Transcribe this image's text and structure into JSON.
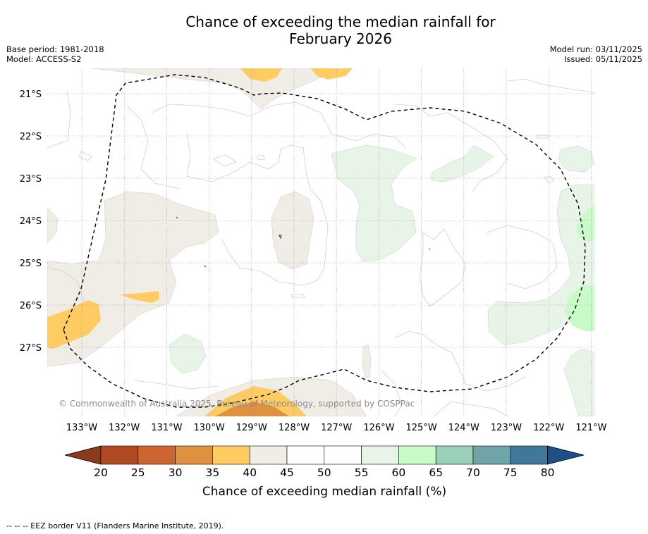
{
  "header": {
    "title_line1": "Chance of exceeding the median rainfall for",
    "title_line2": "February 2026",
    "base_period": "Base period: 1981-2018",
    "model": "Model: ACCESS-S2",
    "model_run": "Model run: 03/11/2025",
    "issued": "Issued: 05/11/2025"
  },
  "map": {
    "latitudes": [
      "21°S",
      "22°S",
      "23°S",
      "24°S",
      "25°S",
      "26°S",
      "27°S"
    ],
    "longitudes": [
      "133°W",
      "132°W",
      "131°W",
      "130°W",
      "129°W",
      "128°W",
      "127°W",
      "126°W",
      "125°W",
      "124°W",
      "123°W",
      "122°W",
      "121°W"
    ],
    "copyright": "© Commonwealth of Australia 2025, Bureau of Meteorology, supported by COSPPac"
  },
  "colorbar": {
    "ticks": [
      "20",
      "25",
      "30",
      "35",
      "40",
      "45",
      "50",
      "55",
      "60",
      "65",
      "70",
      "75",
      "80"
    ],
    "colors": [
      "#8c3a1e",
      "#b04a22",
      "#cd6530",
      "#e09140",
      "#fecc63",
      "#f0ece6",
      "#ffffff",
      "#ffffff",
      "#e8f4e8",
      "#c8fbc8",
      "#9bd0b8",
      "#6fa5a8",
      "#3f7898",
      "#1d4f88"
    ],
    "title": "Chance of exceeding median rainfall (%)"
  },
  "footer": {
    "legend_text": "--  --  -- EEZ border V11 (Flanders Marine Institute, 2019)."
  }
}
